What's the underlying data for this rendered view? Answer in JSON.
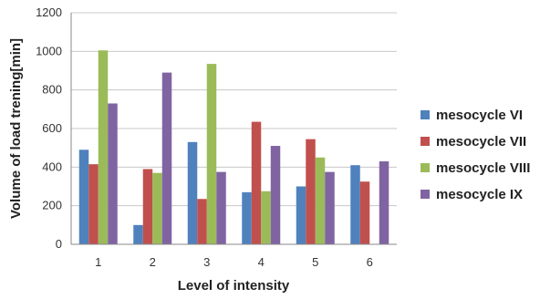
{
  "chart_data": {
    "type": "bar",
    "categories": [
      "1",
      "2",
      "3",
      "4",
      "5",
      "6"
    ],
    "series": [
      {
        "name": "mesocycle VI",
        "color": "#4F81BD",
        "values": [
          490,
          100,
          530,
          270,
          300,
          410
        ]
      },
      {
        "name": "mesocycle VII",
        "color": "#C0504D",
        "values": [
          415,
          390,
          235,
          635,
          545,
          325
        ]
      },
      {
        "name": "mesocycle VIII",
        "color": "#9BBB59",
        "values": [
          1005,
          370,
          935,
          275,
          450,
          0
        ]
      },
      {
        "name": "mesocycle IX",
        "color": "#8064A2",
        "values": [
          730,
          890,
          375,
          510,
          375,
          430
        ]
      }
    ],
    "yticks": [
      "0",
      "200",
      "400",
      "600",
      "800",
      "1000",
      "1200"
    ],
    "ylim": [
      0,
      1200
    ],
    "xlabel": "Level of intensity",
    "ylabel": "Volume of load trening[min]",
    "grid": true,
    "legend_position": "right"
  }
}
